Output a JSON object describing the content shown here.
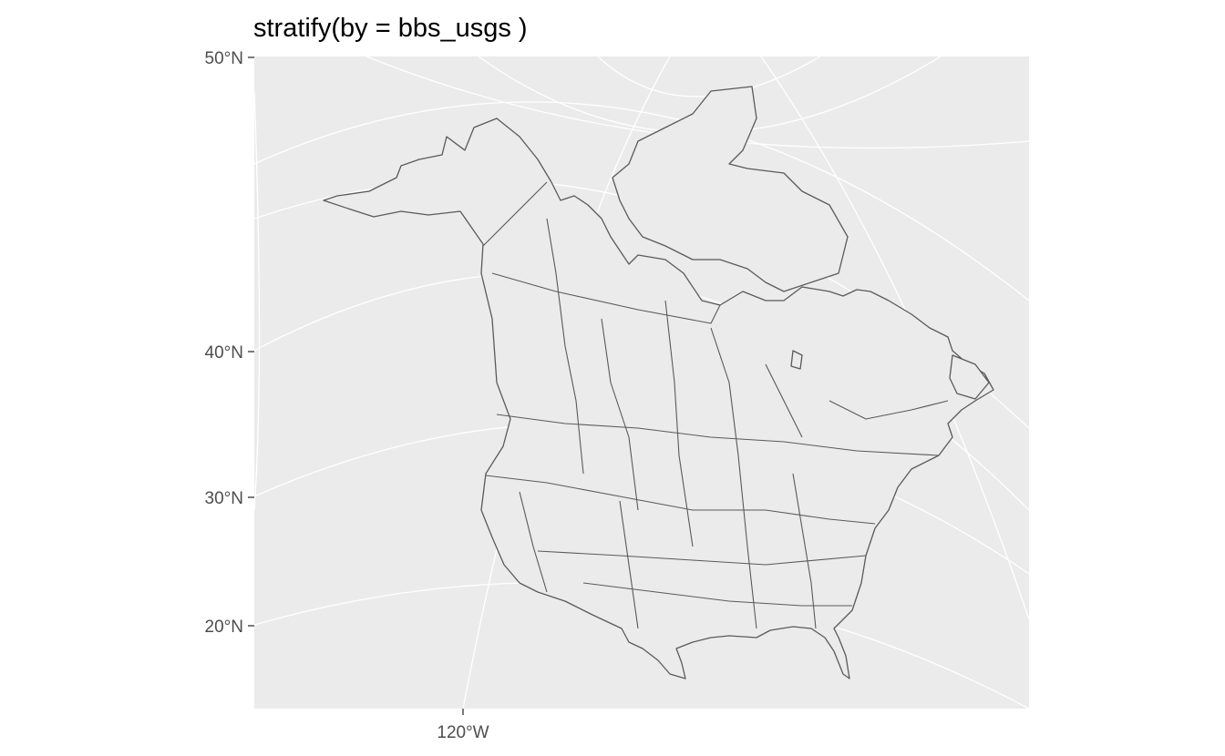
{
  "title": "stratify(by = bbs_usgs )",
  "panel": {
    "background": "#ebebeb",
    "grid_color": "#ffffff",
    "stroke_color": "#5a5a5a"
  },
  "y_axis": {
    "ticks": [
      "50°N",
      "40°N",
      "30°N",
      "20°N"
    ]
  },
  "x_axis": {
    "ticks": [
      "120°W"
    ]
  },
  "map": {
    "region": "North America",
    "strata": "bbs_usgs"
  }
}
